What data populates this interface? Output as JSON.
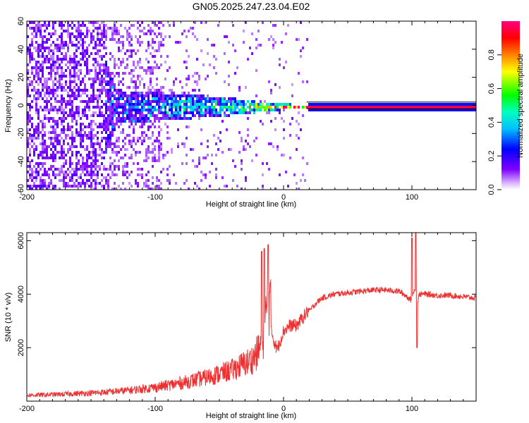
{
  "figure_title": "GN05.2025.247.23.04.E02",
  "chart_data": [
    {
      "type": "heatmap",
      "title": "GN05.2025.247.23.04.E02",
      "xlabel": "Height of straight line (km)",
      "ylabel": "Frequency (Hz)",
      "xlim": [
        -200,
        150
      ],
      "ylim": [
        -60,
        60
      ],
      "xticks": [
        -200,
        -100,
        0,
        100
      ],
      "xtick_labels": [
        "-200",
        "-100",
        "0",
        "100"
      ],
      "yticks": [
        -60,
        -40,
        -20,
        0,
        20,
        40,
        60
      ],
      "ytick_labels": [
        "-60",
        "-40",
        "-20",
        "0",
        "20",
        "40",
        "60"
      ],
      "colorbar": {
        "label": "Normalized spectral amplitude",
        "range": [
          0,
          1
        ],
        "ticks": [
          0.0,
          0.2,
          0.4,
          0.6,
          0.8
        ],
        "tick_labels": [
          "0.0",
          "0.2",
          "0.4",
          "0.6",
          "0.8"
        ],
        "colormap": [
          "#ffffff",
          "#7f00ff",
          "#0000ff",
          "#00ffff",
          "#00ff00",
          "#ffff00",
          "#ff8000",
          "#ff0000",
          "#ff0080"
        ]
      },
      "description_points": [
        {
          "x": -200,
          "freq_spread": 60,
          "amp": 0.12
        },
        {
          "x": -150,
          "freq_spread": 60,
          "amp": 0.12
        },
        {
          "x": -130,
          "freq_spread": 12,
          "amp": 0.2
        },
        {
          "x": -100,
          "freq_spread": 10,
          "amp": 0.3
        },
        {
          "x": -50,
          "freq_spread": 7,
          "amp": 0.4
        },
        {
          "x": -20,
          "freq_spread": 4,
          "amp": 0.6
        },
        {
          "x": 0,
          "freq_spread": 2,
          "amp": 0.8
        },
        {
          "x": 20,
          "freq_spread": 1,
          "amp": 0.95
        },
        {
          "x": 150,
          "freq_spread": 1,
          "amp": 0.95
        }
      ]
    },
    {
      "type": "line",
      "xlabel": "Height of straight line (km)",
      "ylabel": "SNR (10 * v/v)",
      "xlim": [
        -200,
        150
      ],
      "ylim": [
        0,
        6300
      ],
      "xticks": [
        -200,
        -100,
        0,
        100
      ],
      "xtick_labels": [
        "-200",
        "-100",
        "0",
        "100"
      ],
      "yticks": [
        2000,
        4000,
        6000
      ],
      "ytick_labels": [
        "2000",
        "4000",
        "6000"
      ],
      "color": "#f03030",
      "series": [
        {
          "name": "SNR",
          "x": [
            -200,
            -180,
            -160,
            -140,
            -120,
            -100,
            -80,
            -60,
            -40,
            -25,
            -20,
            -15,
            -12,
            -8,
            -5,
            0,
            5,
            10,
            15,
            20,
            25,
            30,
            40,
            50,
            60,
            70,
            80,
            90,
            95,
            100,
            102,
            104,
            106,
            110,
            120,
            130,
            140,
            150
          ],
          "y": [
            180,
            200,
            230,
            270,
            330,
            420,
            550,
            720,
            950,
            1250,
            1500,
            2000,
            3300,
            2200,
            1800,
            2500,
            2700,
            2700,
            3000,
            3300,
            3600,
            3800,
            3950,
            4000,
            4050,
            4100,
            4100,
            4050,
            3900,
            3700,
            4200,
            3600,
            3950,
            3950,
            3900,
            3900,
            3850,
            3800
          ]
        }
      ],
      "spikes": [
        {
          "x": -17,
          "y": 5600
        },
        {
          "x": -15,
          "y": 5700
        },
        {
          "x": -12,
          "y": 5850
        },
        {
          "x": 100,
          "y": 6100
        },
        {
          "x": 103,
          "y": 6300
        },
        {
          "x": 104,
          "y": 2000
        }
      ]
    }
  ]
}
